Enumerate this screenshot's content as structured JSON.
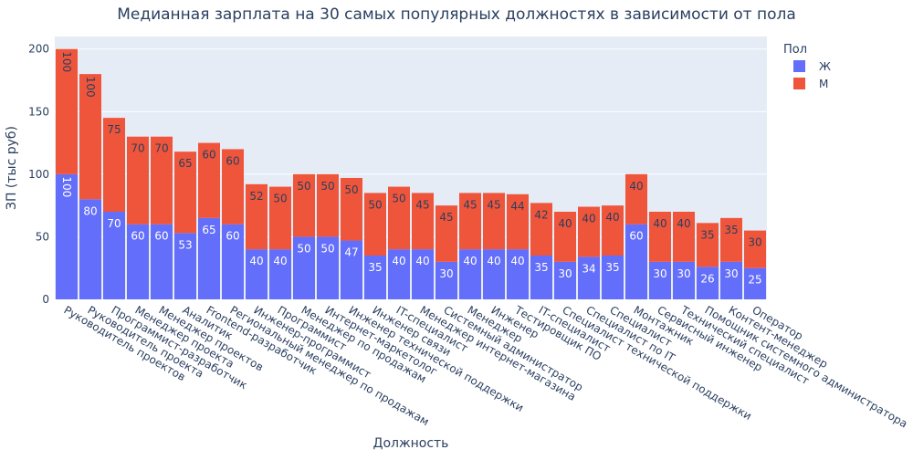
{
  "chart_data": {
    "type": "bar",
    "title": "Медианная зарплата на 30 самых популярных должностях в зависимости от пола",
    "xlabel": "Должность",
    "ylabel": "ЗП (тыс руб)",
    "ylim": [
      0,
      210
    ],
    "yticks": [
      0,
      50,
      100,
      150,
      200
    ],
    "grid": true,
    "legend_position": "top-right",
    "legend_title": "Пол",
    "categories": [
      "Руководитель проектов",
      "Руководитель проекта",
      "Программист-разработчик",
      "Менеджер проекта",
      "Менеджер проектов",
      "Аналитик",
      "Frontend-разработчик",
      "Региональный менеджер по продажам",
      "Инженер-программист",
      "Программист",
      "Менеджер по продажам",
      "Интернет-маркетолог",
      "Инженер технической поддержки",
      "Инженер связи",
      "IT-специалист",
      "Менеджер интернет-магазина",
      "Системный администратор",
      "Менеджер",
      "Инженер",
      "Тестировщик ПО",
      "IT-специалист",
      "Специалист технической поддержки",
      "Специалист по IT",
      "Специалист",
      "Монтажник",
      "Сервисный инженер",
      "Технический специалист",
      "Помощник системного администратора",
      "Контент-менеджер",
      "Оператор"
    ],
    "series": [
      {
        "name": "Ж",
        "color": "#636efa",
        "label_color": "#ffffff",
        "values": [
          100,
          80,
          70,
          60,
          60,
          53,
          65,
          60,
          40,
          40,
          50,
          50,
          47,
          35,
          40,
          40,
          30,
          40,
          40,
          40,
          35,
          30,
          34,
          35,
          60,
          30,
          30,
          26,
          30,
          25
        ]
      },
      {
        "name": "М",
        "color": "#ef553b",
        "label_color": "#2a3f5f",
        "values": [
          100,
          100,
          75,
          70,
          70,
          65,
          60,
          60,
          52,
          50,
          50,
          50,
          50,
          50,
          50,
          45,
          45,
          45,
          45,
          44,
          42,
          40,
          40,
          40,
          40,
          40,
          40,
          35,
          35,
          30
        ]
      }
    ]
  }
}
